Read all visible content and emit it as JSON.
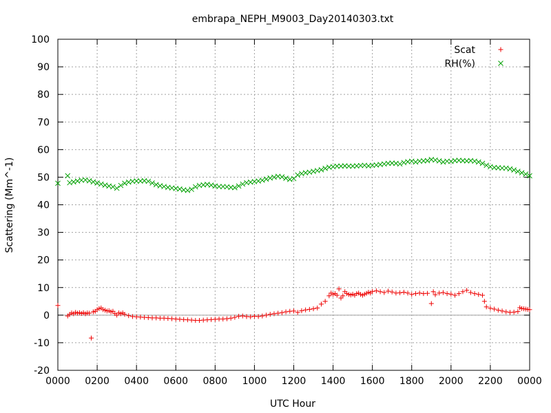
{
  "chart_data": {
    "type": "scatter",
    "title": "embrapa_NEPH_M9003_Day20140303.txt",
    "xlabel": "UTC Hour",
    "ylabel": "Scattering (Mm^-1)",
    "xlim": [
      0,
      24
    ],
    "ylim": [
      -20,
      100
    ],
    "xticks": [
      0,
      2,
      4,
      6,
      8,
      10,
      12,
      14,
      16,
      18,
      20,
      22,
      24
    ],
    "xtick_labels": [
      "0000",
      "0200",
      "0400",
      "0600",
      "0800",
      "1000",
      "1200",
      "1400",
      "1600",
      "1800",
      "2000",
      "2200",
      "0000"
    ],
    "yticks": [
      -20,
      -10,
      0,
      10,
      20,
      30,
      40,
      50,
      60,
      70,
      80,
      90,
      100
    ],
    "grid": true,
    "zero_line": true,
    "legend_position": "top-right",
    "series": [
      {
        "name": "Scat",
        "marker": "plus",
        "color": "#ee0000",
        "points": [
          [
            0.0,
            3.5
          ],
          [
            0.5,
            -0.3
          ],
          [
            0.6,
            0.3
          ],
          [
            0.7,
            0.8
          ],
          [
            0.8,
            0.5
          ],
          [
            0.9,
            1.0
          ],
          [
            1.0,
            0.7
          ],
          [
            1.1,
            0.9
          ],
          [
            1.2,
            0.6
          ],
          [
            1.3,
            0.9
          ],
          [
            1.4,
            0.5
          ],
          [
            1.5,
            0.8
          ],
          [
            1.6,
            0.7
          ],
          [
            1.7,
            -8.3
          ],
          [
            1.8,
            1.2
          ],
          [
            1.9,
            1.4
          ],
          [
            2.0,
            2.0
          ],
          [
            2.1,
            2.4
          ],
          [
            2.2,
            2.6
          ],
          [
            2.3,
            2.0
          ],
          [
            2.4,
            1.8
          ],
          [
            2.5,
            1.5
          ],
          [
            2.6,
            1.6
          ],
          [
            2.7,
            1.2
          ],
          [
            2.8,
            1.4
          ],
          [
            2.9,
            0.6
          ],
          [
            3.0,
            0.0
          ],
          [
            3.1,
            0.8
          ],
          [
            3.2,
            0.5
          ],
          [
            3.3,
            0.8
          ],
          [
            3.4,
            0.3
          ],
          [
            3.6,
            -0.2
          ],
          [
            3.8,
            -0.5
          ],
          [
            4.0,
            -0.6
          ],
          [
            4.2,
            -0.7
          ],
          [
            4.4,
            -0.8
          ],
          [
            4.6,
            -0.9
          ],
          [
            4.8,
            -1.0
          ],
          [
            5.0,
            -1.0
          ],
          [
            5.2,
            -1.1
          ],
          [
            5.4,
            -1.1
          ],
          [
            5.6,
            -1.2
          ],
          [
            5.8,
            -1.3
          ],
          [
            6.0,
            -1.4
          ],
          [
            6.2,
            -1.5
          ],
          [
            6.4,
            -1.6
          ],
          [
            6.6,
            -1.7
          ],
          [
            6.8,
            -1.8
          ],
          [
            7.0,
            -1.9
          ],
          [
            7.2,
            -1.9
          ],
          [
            7.4,
            -1.8
          ],
          [
            7.6,
            -1.7
          ],
          [
            7.8,
            -1.6
          ],
          [
            8.0,
            -1.5
          ],
          [
            8.2,
            -1.4
          ],
          [
            8.4,
            -1.4
          ],
          [
            8.6,
            -1.3
          ],
          [
            8.8,
            -1.1
          ],
          [
            9.0,
            -0.8
          ],
          [
            9.2,
            -0.4
          ],
          [
            9.4,
            -0.3
          ],
          [
            9.6,
            -0.5
          ],
          [
            9.8,
            -0.6
          ],
          [
            10.0,
            -0.4
          ],
          [
            10.2,
            -0.5
          ],
          [
            10.4,
            -0.3
          ],
          [
            10.6,
            0.0
          ],
          [
            10.8,
            0.3
          ],
          [
            11.0,
            0.5
          ],
          [
            11.2,
            0.7
          ],
          [
            11.4,
            0.9
          ],
          [
            11.6,
            1.2
          ],
          [
            11.8,
            1.4
          ],
          [
            12.0,
            1.5
          ],
          [
            12.2,
            1.0
          ],
          [
            12.4,
            1.6
          ],
          [
            12.6,
            1.9
          ],
          [
            12.8,
            2.1
          ],
          [
            13.0,
            2.3
          ],
          [
            13.2,
            2.6
          ],
          [
            13.4,
            4.0
          ],
          [
            13.6,
            5.0
          ],
          [
            13.8,
            7.0
          ],
          [
            13.9,
            8.0
          ],
          [
            14.0,
            7.5
          ],
          [
            14.1,
            7.8
          ],
          [
            14.2,
            7.2
          ],
          [
            14.3,
            9.5
          ],
          [
            14.4,
            6.2
          ],
          [
            14.5,
            7.0
          ],
          [
            14.6,
            8.5
          ],
          [
            14.7,
            7.8
          ],
          [
            14.8,
            7.5
          ],
          [
            14.9,
            7.3
          ],
          [
            15.0,
            7.6
          ],
          [
            15.1,
            7.2
          ],
          [
            15.2,
            7.8
          ],
          [
            15.3,
            8.0
          ],
          [
            15.4,
            7.5
          ],
          [
            15.5,
            7.2
          ],
          [
            15.6,
            7.6
          ],
          [
            15.7,
            7.9
          ],
          [
            15.8,
            8.3
          ],
          [
            15.9,
            8.0
          ],
          [
            16.0,
            8.6
          ],
          [
            16.2,
            8.8
          ],
          [
            16.4,
            8.5
          ],
          [
            16.6,
            8.2
          ],
          [
            16.8,
            8.7
          ],
          [
            17.0,
            8.4
          ],
          [
            17.2,
            8.0
          ],
          [
            17.4,
            8.1
          ],
          [
            17.6,
            8.3
          ],
          [
            17.8,
            8.0
          ],
          [
            18.0,
            7.5
          ],
          [
            18.2,
            7.8
          ],
          [
            18.4,
            8.0
          ],
          [
            18.6,
            7.8
          ],
          [
            18.8,
            7.9
          ],
          [
            19.0,
            4.2
          ],
          [
            19.1,
            8.5
          ],
          [
            19.2,
            7.4
          ],
          [
            19.4,
            8.0
          ],
          [
            19.6,
            8.2
          ],
          [
            19.8,
            7.8
          ],
          [
            20.0,
            7.6
          ],
          [
            20.2,
            7.2
          ],
          [
            20.4,
            7.8
          ],
          [
            20.6,
            8.5
          ],
          [
            20.8,
            9.0
          ],
          [
            21.0,
            8.2
          ],
          [
            21.2,
            7.8
          ],
          [
            21.4,
            7.5
          ],
          [
            21.6,
            7.2
          ],
          [
            21.7,
            5.0
          ],
          [
            21.8,
            3.0
          ],
          [
            22.0,
            2.5
          ],
          [
            22.2,
            2.2
          ],
          [
            22.4,
            1.8
          ],
          [
            22.6,
            1.5
          ],
          [
            22.8,
            1.2
          ],
          [
            23.0,
            1.0
          ],
          [
            23.2,
            1.1
          ],
          [
            23.4,
            1.3
          ],
          [
            23.5,
            2.7
          ],
          [
            23.6,
            2.4
          ],
          [
            23.7,
            2.3
          ],
          [
            23.8,
            2.2
          ],
          [
            23.9,
            2.1
          ],
          [
            24.0,
            2.0
          ]
        ]
      },
      {
        "name": "RH(%)",
        "marker": "cross",
        "color": "#00a000",
        "points": [
          [
            0.0,
            47.8
          ],
          [
            0.5,
            50.5
          ],
          [
            0.6,
            48.0
          ],
          [
            0.8,
            48.3
          ],
          [
            1.0,
            48.6
          ],
          [
            1.2,
            48.9
          ],
          [
            1.4,
            49.0
          ],
          [
            1.6,
            48.7
          ],
          [
            1.8,
            48.3
          ],
          [
            2.0,
            47.9
          ],
          [
            2.2,
            47.5
          ],
          [
            2.4,
            47.1
          ],
          [
            2.6,
            46.8
          ],
          [
            2.8,
            46.5
          ],
          [
            3.0,
            46.0
          ],
          [
            3.2,
            47.0
          ],
          [
            3.4,
            47.8
          ],
          [
            3.6,
            48.2
          ],
          [
            3.8,
            48.5
          ],
          [
            4.0,
            48.6
          ],
          [
            4.2,
            48.6
          ],
          [
            4.4,
            48.7
          ],
          [
            4.6,
            48.5
          ],
          [
            4.8,
            47.9
          ],
          [
            5.0,
            47.3
          ],
          [
            5.2,
            46.9
          ],
          [
            5.4,
            46.6
          ],
          [
            5.6,
            46.3
          ],
          [
            5.8,
            46.1
          ],
          [
            6.0,
            45.9
          ],
          [
            6.2,
            45.7
          ],
          [
            6.4,
            45.4
          ],
          [
            6.6,
            45.2
          ],
          [
            6.8,
            45.6
          ],
          [
            7.0,
            46.5
          ],
          [
            7.2,
            47.0
          ],
          [
            7.4,
            47.2
          ],
          [
            7.6,
            47.4
          ],
          [
            7.8,
            47.1
          ],
          [
            8.0,
            46.8
          ],
          [
            8.2,
            46.6
          ],
          [
            8.4,
            46.6
          ],
          [
            8.6,
            46.5
          ],
          [
            8.8,
            46.3
          ],
          [
            9.0,
            46.2
          ],
          [
            9.2,
            46.8
          ],
          [
            9.4,
            47.5
          ],
          [
            9.6,
            48.0
          ],
          [
            9.8,
            48.2
          ],
          [
            10.0,
            48.4
          ],
          [
            10.2,
            48.6
          ],
          [
            10.4,
            48.9
          ],
          [
            10.6,
            49.3
          ],
          [
            10.8,
            49.7
          ],
          [
            11.0,
            50.0
          ],
          [
            11.2,
            50.3
          ],
          [
            11.4,
            50.1
          ],
          [
            11.6,
            49.6
          ],
          [
            11.8,
            49.2
          ],
          [
            12.0,
            49.5
          ],
          [
            12.2,
            50.8
          ],
          [
            12.4,
            51.3
          ],
          [
            12.6,
            51.6
          ],
          [
            12.8,
            51.8
          ],
          [
            13.0,
            52.1
          ],
          [
            13.2,
            52.4
          ],
          [
            13.4,
            52.7
          ],
          [
            13.6,
            53.2
          ],
          [
            13.8,
            53.6
          ],
          [
            14.0,
            53.8
          ],
          [
            14.2,
            54.0
          ],
          [
            14.4,
            54.0
          ],
          [
            14.6,
            54.1
          ],
          [
            14.8,
            54.0
          ],
          [
            15.0,
            54.0
          ],
          [
            15.2,
            54.1
          ],
          [
            15.4,
            54.2
          ],
          [
            15.6,
            54.3
          ],
          [
            15.8,
            54.1
          ],
          [
            16.0,
            54.3
          ],
          [
            16.2,
            54.4
          ],
          [
            16.4,
            54.6
          ],
          [
            16.6,
            54.8
          ],
          [
            16.8,
            55.0
          ],
          [
            17.0,
            55.1
          ],
          [
            17.2,
            55.0
          ],
          [
            17.4,
            54.8
          ],
          [
            17.6,
            55.3
          ],
          [
            17.8,
            55.6
          ],
          [
            18.0,
            55.8
          ],
          [
            18.2,
            55.5
          ],
          [
            18.4,
            55.8
          ],
          [
            18.6,
            55.9
          ],
          [
            18.8,
            56.0
          ],
          [
            19.0,
            56.4
          ],
          [
            19.2,
            56.2
          ],
          [
            19.4,
            55.9
          ],
          [
            19.6,
            55.5
          ],
          [
            19.8,
            55.8
          ],
          [
            20.0,
            55.7
          ],
          [
            20.2,
            56.0
          ],
          [
            20.4,
            56.1
          ],
          [
            20.6,
            56.0
          ],
          [
            20.8,
            55.9
          ],
          [
            21.0,
            56.0
          ],
          [
            21.2,
            55.8
          ],
          [
            21.4,
            55.5
          ],
          [
            21.6,
            55.0
          ],
          [
            21.8,
            54.3
          ],
          [
            22.0,
            53.8
          ],
          [
            22.2,
            53.5
          ],
          [
            22.4,
            53.4
          ],
          [
            22.6,
            53.3
          ],
          [
            22.8,
            53.3
          ],
          [
            23.0,
            53.0
          ],
          [
            23.2,
            52.6
          ],
          [
            23.4,
            52.1
          ],
          [
            23.6,
            51.6
          ],
          [
            23.8,
            51.1
          ],
          [
            24.0,
            50.5
          ]
        ]
      }
    ]
  }
}
